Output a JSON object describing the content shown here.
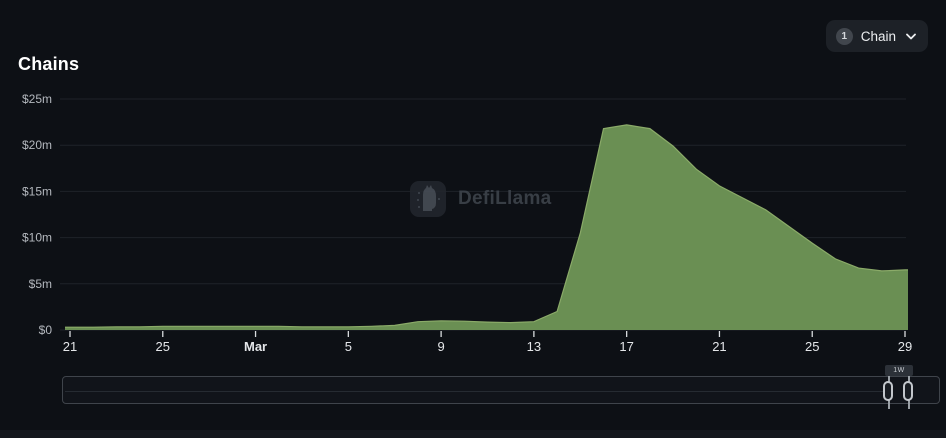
{
  "page": {
    "title": "Chains"
  },
  "toolbar": {
    "chain_selector": {
      "count": "1",
      "label": "Chain"
    }
  },
  "watermark": {
    "text": "DefiLlama"
  },
  "brush": {
    "handle_badge": "1W"
  },
  "colors": {
    "background": "#0d1015",
    "area_fill": "#6a8f53",
    "area_line": "#8bab69",
    "gridline": "#1e2229",
    "y_label": "#b4b8be",
    "x_label": "#e4e6e9",
    "tick": "#d9dcdf"
  },
  "chart_data": {
    "type": "area",
    "title": "Chains",
    "ylabel": "",
    "xlabel": "",
    "unit": "USD (millions)",
    "ylim": [
      0,
      25
    ],
    "grid": true,
    "legend_position": "none",
    "x": [
      "Feb 21",
      "Feb 22",
      "Feb 23",
      "Feb 24",
      "Feb 25",
      "Feb 26",
      "Feb 27",
      "Feb 28",
      "Mar 1",
      "Mar 2",
      "Mar 3",
      "Mar 4",
      "Mar 5",
      "Mar 6",
      "Mar 7",
      "Mar 8",
      "Mar 9",
      "Mar 10",
      "Mar 11",
      "Mar 12",
      "Mar 13",
      "Mar 14",
      "Mar 15",
      "Mar 16",
      "Mar 17",
      "Mar 18",
      "Mar 19",
      "Mar 20",
      "Mar 21",
      "Mar 22",
      "Mar 23",
      "Mar 24",
      "Mar 25",
      "Mar 26",
      "Mar 27",
      "Mar 28",
      "Mar 29"
    ],
    "values": [
      0.3,
      0.3,
      0.35,
      0.35,
      0.4,
      0.4,
      0.4,
      0.4,
      0.4,
      0.4,
      0.35,
      0.35,
      0.35,
      0.4,
      0.5,
      0.9,
      1.0,
      0.95,
      0.85,
      0.8,
      0.9,
      2.0,
      10.5,
      21.8,
      22.2,
      21.8,
      19.9,
      17.4,
      15.6,
      14.3,
      13.0,
      11.2,
      9.4,
      7.7,
      6.7,
      6.4,
      6.5
    ],
    "y_ticks": [
      {
        "label": "$25m",
        "value": 25
      },
      {
        "label": "$20m",
        "value": 20
      },
      {
        "label": "$15m",
        "value": 15
      },
      {
        "label": "$10m",
        "value": 10
      },
      {
        "label": "$5m",
        "value": 5
      },
      {
        "label": "$0",
        "value": 0
      }
    ],
    "x_ticks": [
      {
        "label": "21",
        "index": 0,
        "bold": false
      },
      {
        "label": "25",
        "index": 4,
        "bold": false
      },
      {
        "label": "Mar",
        "index": 8,
        "bold": true
      },
      {
        "label": "5",
        "index": 12,
        "bold": false
      },
      {
        "label": "9",
        "index": 16,
        "bold": false
      },
      {
        "label": "13",
        "index": 20,
        "bold": false
      },
      {
        "label": "17",
        "index": 24,
        "bold": false
      },
      {
        "label": "21",
        "index": 28,
        "bold": false
      },
      {
        "label": "25",
        "index": 32,
        "bold": false
      },
      {
        "label": "29",
        "index": 36,
        "bold": false
      }
    ]
  }
}
